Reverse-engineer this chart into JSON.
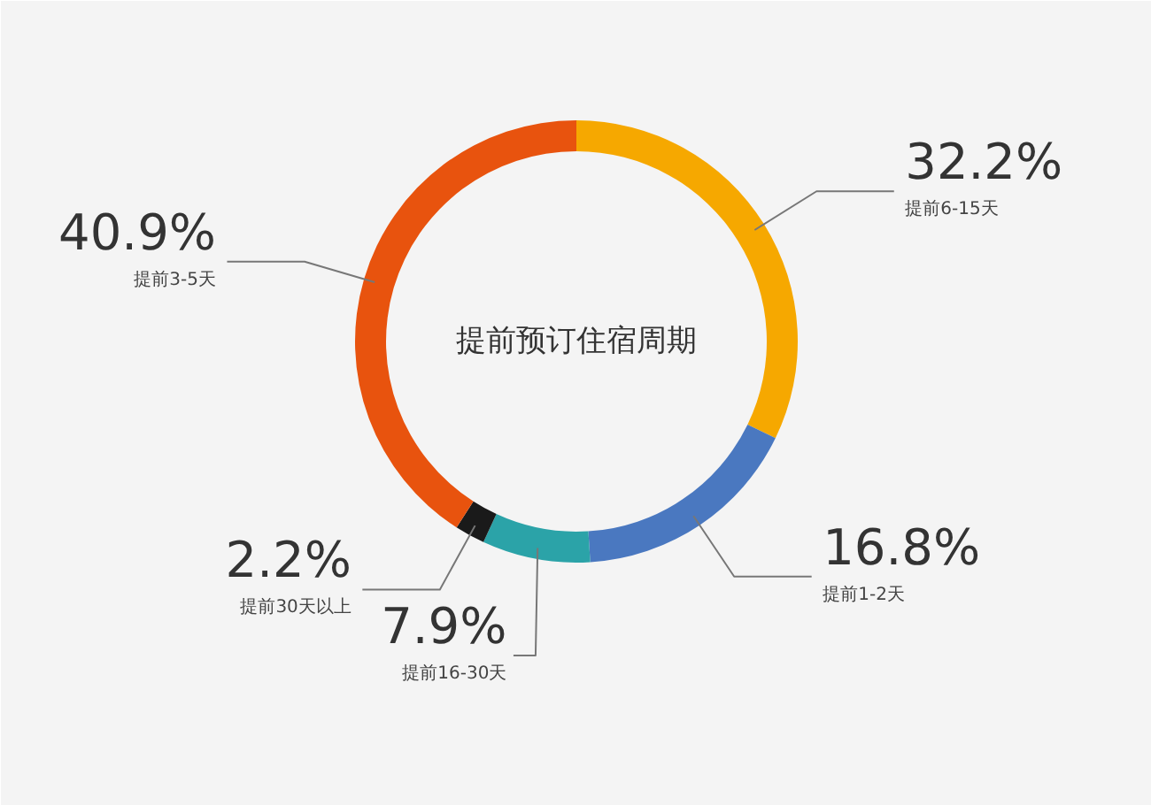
{
  "chart_data": {
    "type": "donut",
    "title": "提前预订住宿周期",
    "categories": [
      "提前6-15天",
      "提前1-2天",
      "提前16-30天",
      "提前30天以上",
      "提前3-5天"
    ],
    "values": [
      32.2,
      16.8,
      7.9,
      2.2,
      40.9
    ],
    "value_labels": [
      "32.2%",
      "16.8%",
      "7.9%",
      "2.2%",
      "40.9%"
    ],
    "colors": [
      "#f6a800",
      "#4a78c0",
      "#2ba3a8",
      "#1a1a1a",
      "#e8530e"
    ]
  }
}
